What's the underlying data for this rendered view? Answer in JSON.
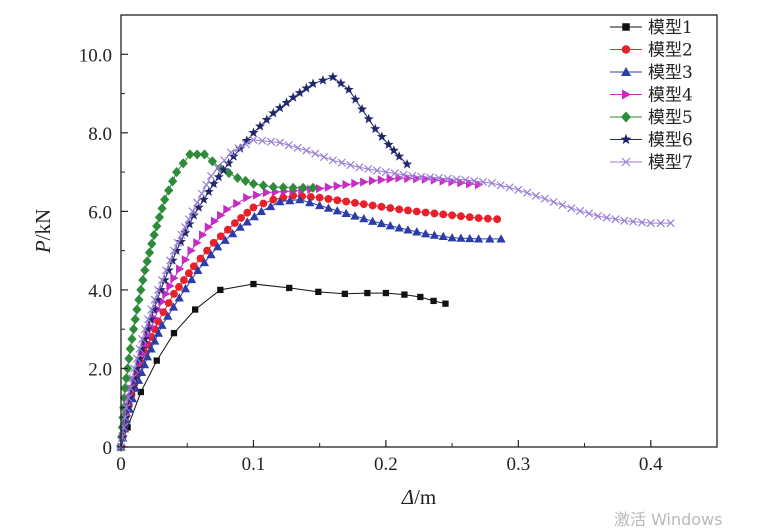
{
  "chart_data": {
    "type": "line",
    "title": "",
    "xlabel_italic": "Δ",
    "xlabel_rest": "/m",
    "ylabel_italic": "P",
    "ylabel_rest": "/kN",
    "xlim": [
      0,
      0.45
    ],
    "ylim": [
      0,
      11
    ],
    "xticks": [
      0,
      0.1,
      0.2,
      0.3,
      0.4
    ],
    "xtick_labels": [
      "0",
      "0.1",
      "0.2",
      "0.3",
      "0.4"
    ],
    "yticks": [
      0,
      2,
      4,
      6,
      8,
      10
    ],
    "ytick_labels": [
      "0",
      "2.0",
      "4.0",
      "6.0",
      "8.0",
      "10.0"
    ],
    "legend_position": "top-right",
    "series": [
      {
        "name": "模型1",
        "color": "#111111",
        "marker": "square",
        "points": [
          [
            0,
            0
          ],
          [
            0.005,
            0.5
          ],
          [
            0.015,
            1.4
          ],
          [
            0.027,
            2.2
          ],
          [
            0.04,
            2.9
          ],
          [
            0.056,
            3.5
          ],
          [
            0.075,
            4.0
          ],
          [
            0.1,
            4.15
          ],
          [
            0.127,
            4.05
          ],
          [
            0.149,
            3.95
          ],
          [
            0.169,
            3.9
          ],
          [
            0.186,
            3.92
          ],
          [
            0.2,
            3.92
          ],
          [
            0.214,
            3.88
          ],
          [
            0.226,
            3.82
          ],
          [
            0.236,
            3.72
          ],
          [
            0.245,
            3.65
          ]
        ]
      },
      {
        "name": "模型2",
        "color": "#e8202a",
        "marker": "circle",
        "points": [
          [
            0,
            0
          ],
          [
            0.004,
            0.8
          ],
          [
            0.01,
            1.6
          ],
          [
            0.018,
            2.4
          ],
          [
            0.028,
            3.2
          ],
          [
            0.04,
            3.9
          ],
          [
            0.055,
            4.6
          ],
          [
            0.07,
            5.2
          ],
          [
            0.086,
            5.7
          ],
          [
            0.1,
            6.1
          ],
          [
            0.115,
            6.3
          ],
          [
            0.13,
            6.4
          ],
          [
            0.15,
            6.35
          ],
          [
            0.17,
            6.25
          ],
          [
            0.19,
            6.15
          ],
          [
            0.21,
            6.05
          ],
          [
            0.23,
            5.97
          ],
          [
            0.25,
            5.9
          ],
          [
            0.27,
            5.83
          ],
          [
            0.284,
            5.8
          ]
        ]
      },
      {
        "name": "模型3",
        "color": "#2b3ea8",
        "marker": "triangle",
        "points": [
          [
            0,
            0
          ],
          [
            0.004,
            0.7
          ],
          [
            0.011,
            1.5
          ],
          [
            0.02,
            2.3
          ],
          [
            0.031,
            3.1
          ],
          [
            0.044,
            3.8
          ],
          [
            0.058,
            4.5
          ],
          [
            0.073,
            5.1
          ],
          [
            0.09,
            5.6
          ],
          [
            0.106,
            6.0
          ],
          [
            0.12,
            6.25
          ],
          [
            0.135,
            6.3
          ],
          [
            0.15,
            6.15
          ],
          [
            0.17,
            5.95
          ],
          [
            0.19,
            5.75
          ],
          [
            0.21,
            5.58
          ],
          [
            0.23,
            5.43
          ],
          [
            0.25,
            5.33
          ],
          [
            0.27,
            5.3
          ],
          [
            0.287,
            5.3
          ]
        ]
      },
      {
        "name": "模型4",
        "color": "#c42cc4",
        "marker": "triangle-right",
        "points": [
          [
            0,
            0
          ],
          [
            0.004,
            0.8
          ],
          [
            0.01,
            1.7
          ],
          [
            0.018,
            2.6
          ],
          [
            0.028,
            3.5
          ],
          [
            0.04,
            4.3
          ],
          [
            0.053,
            5.0
          ],
          [
            0.066,
            5.6
          ],
          [
            0.08,
            6.05
          ],
          [
            0.095,
            6.35
          ],
          [
            0.11,
            6.48
          ],
          [
            0.13,
            6.52
          ],
          [
            0.15,
            6.58
          ],
          [
            0.17,
            6.68
          ],
          [
            0.19,
            6.78
          ],
          [
            0.21,
            6.85
          ],
          [
            0.23,
            6.82
          ],
          [
            0.25,
            6.75
          ],
          [
            0.27,
            6.68
          ]
        ]
      },
      {
        "name": "模型5",
        "color": "#2e8b3a",
        "marker": "diamond",
        "points": [
          [
            0,
            0
          ],
          [
            0.003,
            1.5
          ],
          [
            0.007,
            2.5
          ],
          [
            0.012,
            3.5
          ],
          [
            0.018,
            4.5
          ],
          [
            0.025,
            5.4
          ],
          [
            0.033,
            6.3
          ],
          [
            0.042,
            7.0
          ],
          [
            0.052,
            7.45
          ],
          [
            0.063,
            7.45
          ],
          [
            0.075,
            7.1
          ],
          [
            0.088,
            6.85
          ],
          [
            0.1,
            6.7
          ],
          [
            0.115,
            6.62
          ],
          [
            0.13,
            6.6
          ],
          [
            0.145,
            6.6
          ]
        ]
      },
      {
        "name": "模型6",
        "color": "#22276b",
        "marker": "star",
        "points": [
          [
            0,
            0
          ],
          [
            0.005,
            1.0
          ],
          [
            0.012,
            2.0
          ],
          [
            0.02,
            3.0
          ],
          [
            0.03,
            4.0
          ],
          [
            0.042,
            5.0
          ],
          [
            0.055,
            5.9
          ],
          [
            0.07,
            6.7
          ],
          [
            0.085,
            7.4
          ],
          [
            0.1,
            8.0
          ],
          [
            0.115,
            8.5
          ],
          [
            0.13,
            8.9
          ],
          [
            0.145,
            9.25
          ],
          [
            0.16,
            9.42
          ],
          [
            0.172,
            9.1
          ],
          [
            0.182,
            8.6
          ],
          [
            0.192,
            8.1
          ],
          [
            0.202,
            7.7
          ],
          [
            0.21,
            7.4
          ],
          [
            0.216,
            7.2
          ]
        ]
      },
      {
        "name": "模型7",
        "color": "#9b7fd6",
        "marker": "x",
        "points": [
          [
            0,
            0
          ],
          [
            0.004,
            1.0
          ],
          [
            0.01,
            2.0
          ],
          [
            0.018,
            3.0
          ],
          [
            0.028,
            4.0
          ],
          [
            0.04,
            5.0
          ],
          [
            0.054,
            6.0
          ],
          [
            0.068,
            6.9
          ],
          [
            0.083,
            7.5
          ],
          [
            0.1,
            7.82
          ],
          [
            0.12,
            7.75
          ],
          [
            0.14,
            7.55
          ],
          [
            0.16,
            7.3
          ],
          [
            0.18,
            7.12
          ],
          [
            0.2,
            7.0
          ],
          [
            0.22,
            6.9
          ],
          [
            0.24,
            6.85
          ],
          [
            0.26,
            6.8
          ],
          [
            0.28,
            6.72
          ],
          [
            0.3,
            6.55
          ],
          [
            0.32,
            6.32
          ],
          [
            0.34,
            6.08
          ],
          [
            0.36,
            5.88
          ],
          [
            0.38,
            5.76
          ],
          [
            0.4,
            5.7
          ],
          [
            0.415,
            5.7
          ]
        ]
      }
    ]
  },
  "watermark": "激活 Windows"
}
